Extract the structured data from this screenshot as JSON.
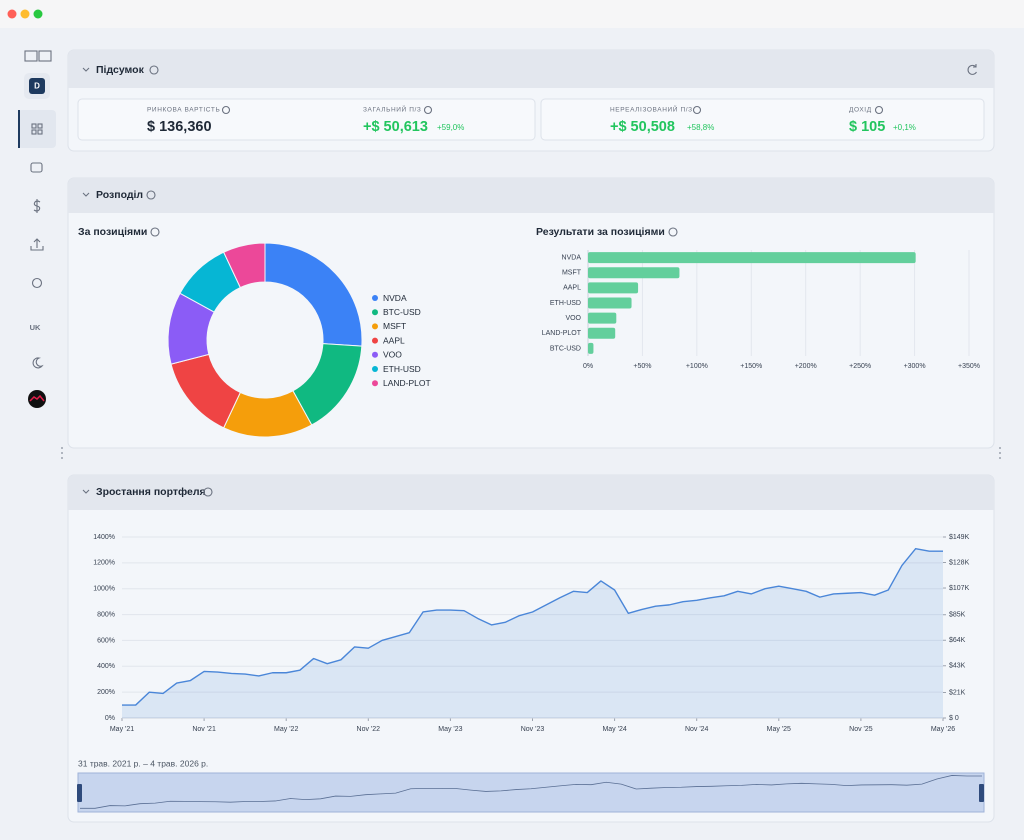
{
  "sidebar": {
    "avatar": "D",
    "language": "UK"
  },
  "summary": {
    "title": "Підсумок",
    "cards": [
      {
        "label": "РИНКОВА ВАРТІСТЬ",
        "value": "$ 136,360"
      },
      {
        "label": "ЗАГАЛЬНИЙ П/З",
        "value": "+$ 50,613",
        "change": "+59,0%"
      },
      {
        "label": "НЕРЕАЛІЗОВАНИЙ П/З",
        "value": "+$ 50,508",
        "change": "+58,8%"
      },
      {
        "label": "ДОХІД",
        "value": "$ 105",
        "change": "+0,1%"
      }
    ]
  },
  "allocation": {
    "title": "Розподіл",
    "chart_data": [
      {
        "type": "pie",
        "title": "За позиціями",
        "categories": [
          "NVDA",
          "BTC-USD",
          "MSFT",
          "AAPL",
          "VOO",
          "ETH-USD",
          "LAND-PLOT"
        ],
        "values": [
          26,
          16,
          15,
          14,
          12,
          10,
          7
        ],
        "colors": [
          "#3b82f6",
          "#10b981",
          "#f59e0b",
          "#ef4444",
          "#8b5cf6",
          "#06b6d4",
          "#ec4899"
        ]
      },
      {
        "type": "bar",
        "orientation": "horizontal",
        "title": "Результати за позиціями",
        "categories": [
          "NVDA",
          "MSFT",
          "AAPL",
          "ETH-USD",
          "VOO",
          "LAND-PLOT",
          "BTC-USD"
        ],
        "values": [
          301,
          84,
          46,
          40,
          26,
          25,
          5
        ],
        "color": "#63cf9c",
        "xlim": [
          0,
          350
        ],
        "xticks": [
          {
            "value": 0,
            "label": "0%"
          },
          {
            "value": 50,
            "label": "+50%"
          },
          {
            "value": 100,
            "label": "+100%"
          },
          {
            "value": 150,
            "label": "+150%"
          },
          {
            "value": 200,
            "label": "+200%"
          },
          {
            "value": 250,
            "label": "+250%"
          },
          {
            "value": 300,
            "label": "+300%"
          },
          {
            "value": 350,
            "label": "+350%"
          }
        ],
        "grid": true
      }
    ]
  },
  "growth": {
    "title": "Зростання портфеля",
    "range_label": "31 трав. 2021 р. – 4 трав. 2026 р.",
    "chart_data": {
      "type": "line",
      "x": [
        0,
        1,
        2,
        3,
        4,
        5,
        6,
        7,
        8,
        9,
        10,
        11,
        12,
        13,
        14,
        15,
        16,
        17,
        18,
        19,
        20,
        21,
        22,
        23,
        24,
        25,
        26,
        27,
        28,
        29,
        30,
        31,
        32,
        33,
        34,
        35,
        36,
        37,
        38,
        39,
        40,
        41,
        42,
        43,
        44,
        45,
        46,
        47,
        48,
        49,
        50,
        51,
        52,
        53,
        54,
        55,
        56,
        57,
        58,
        59,
        60
      ],
      "series": [
        {
          "color": "#4a86d8",
          "values": [
            100,
            100,
            200,
            190,
            270,
            290,
            360,
            355,
            345,
            340,
            325,
            350,
            350,
            370,
            460,
            420,
            450,
            550,
            540,
            600,
            630,
            660,
            820,
            835,
            835,
            830,
            770,
            720,
            740,
            790,
            820,
            875,
            930,
            980,
            970,
            1060,
            990,
            810,
            840,
            865,
            875,
            900,
            910,
            930,
            945,
            980,
            960,
            1000,
            1020,
            1000,
            980,
            935,
            960,
            965,
            970,
            950,
            990,
            1180,
            1310,
            1290,
            1290
          ]
        }
      ],
      "xlim": [
        0,
        60
      ],
      "xticks": [
        {
          "value": 0,
          "label": "May '21"
        },
        {
          "value": 6,
          "label": "Nov '21"
        },
        {
          "value": 12,
          "label": "May '22"
        },
        {
          "value": 18,
          "label": "Nov '22"
        },
        {
          "value": 24,
          "label": "May '23"
        },
        {
          "value": 30,
          "label": "Nov '23"
        },
        {
          "value": 36,
          "label": "May '24"
        },
        {
          "value": 42,
          "label": "Nov '24"
        },
        {
          "value": 48,
          "label": "May '25"
        },
        {
          "value": 54,
          "label": "Nov '25"
        },
        {
          "value": 60,
          "label": "May '26"
        }
      ],
      "ylim": [
        0,
        1400
      ],
      "yticks": [
        {
          "value": 0,
          "label": "0%"
        },
        {
          "value": 200,
          "label": "200%"
        },
        {
          "value": 400,
          "label": "400%"
        },
        {
          "value": 600,
          "label": "600%"
        },
        {
          "value": 800,
          "label": "800%"
        },
        {
          "value": 1000,
          "label": "1000%"
        },
        {
          "value": 1200,
          "label": "1200%"
        },
        {
          "value": 1400,
          "label": "1400%"
        }
      ],
      "y2lim": [
        0,
        149000
      ],
      "y2ticks": [
        {
          "value": 0,
          "label": "$ 0"
        },
        {
          "value": 21000,
          "label": "$21K"
        },
        {
          "value": 43000,
          "label": "$43K"
        },
        {
          "value": 64000,
          "label": "$64K"
        },
        {
          "value": 85000,
          "label": "$85K"
        },
        {
          "value": 107000,
          "label": "$107K"
        },
        {
          "value": 128000,
          "label": "$128K"
        },
        {
          "value": 149000,
          "label": "$149K"
        }
      ],
      "grid": true
    }
  }
}
